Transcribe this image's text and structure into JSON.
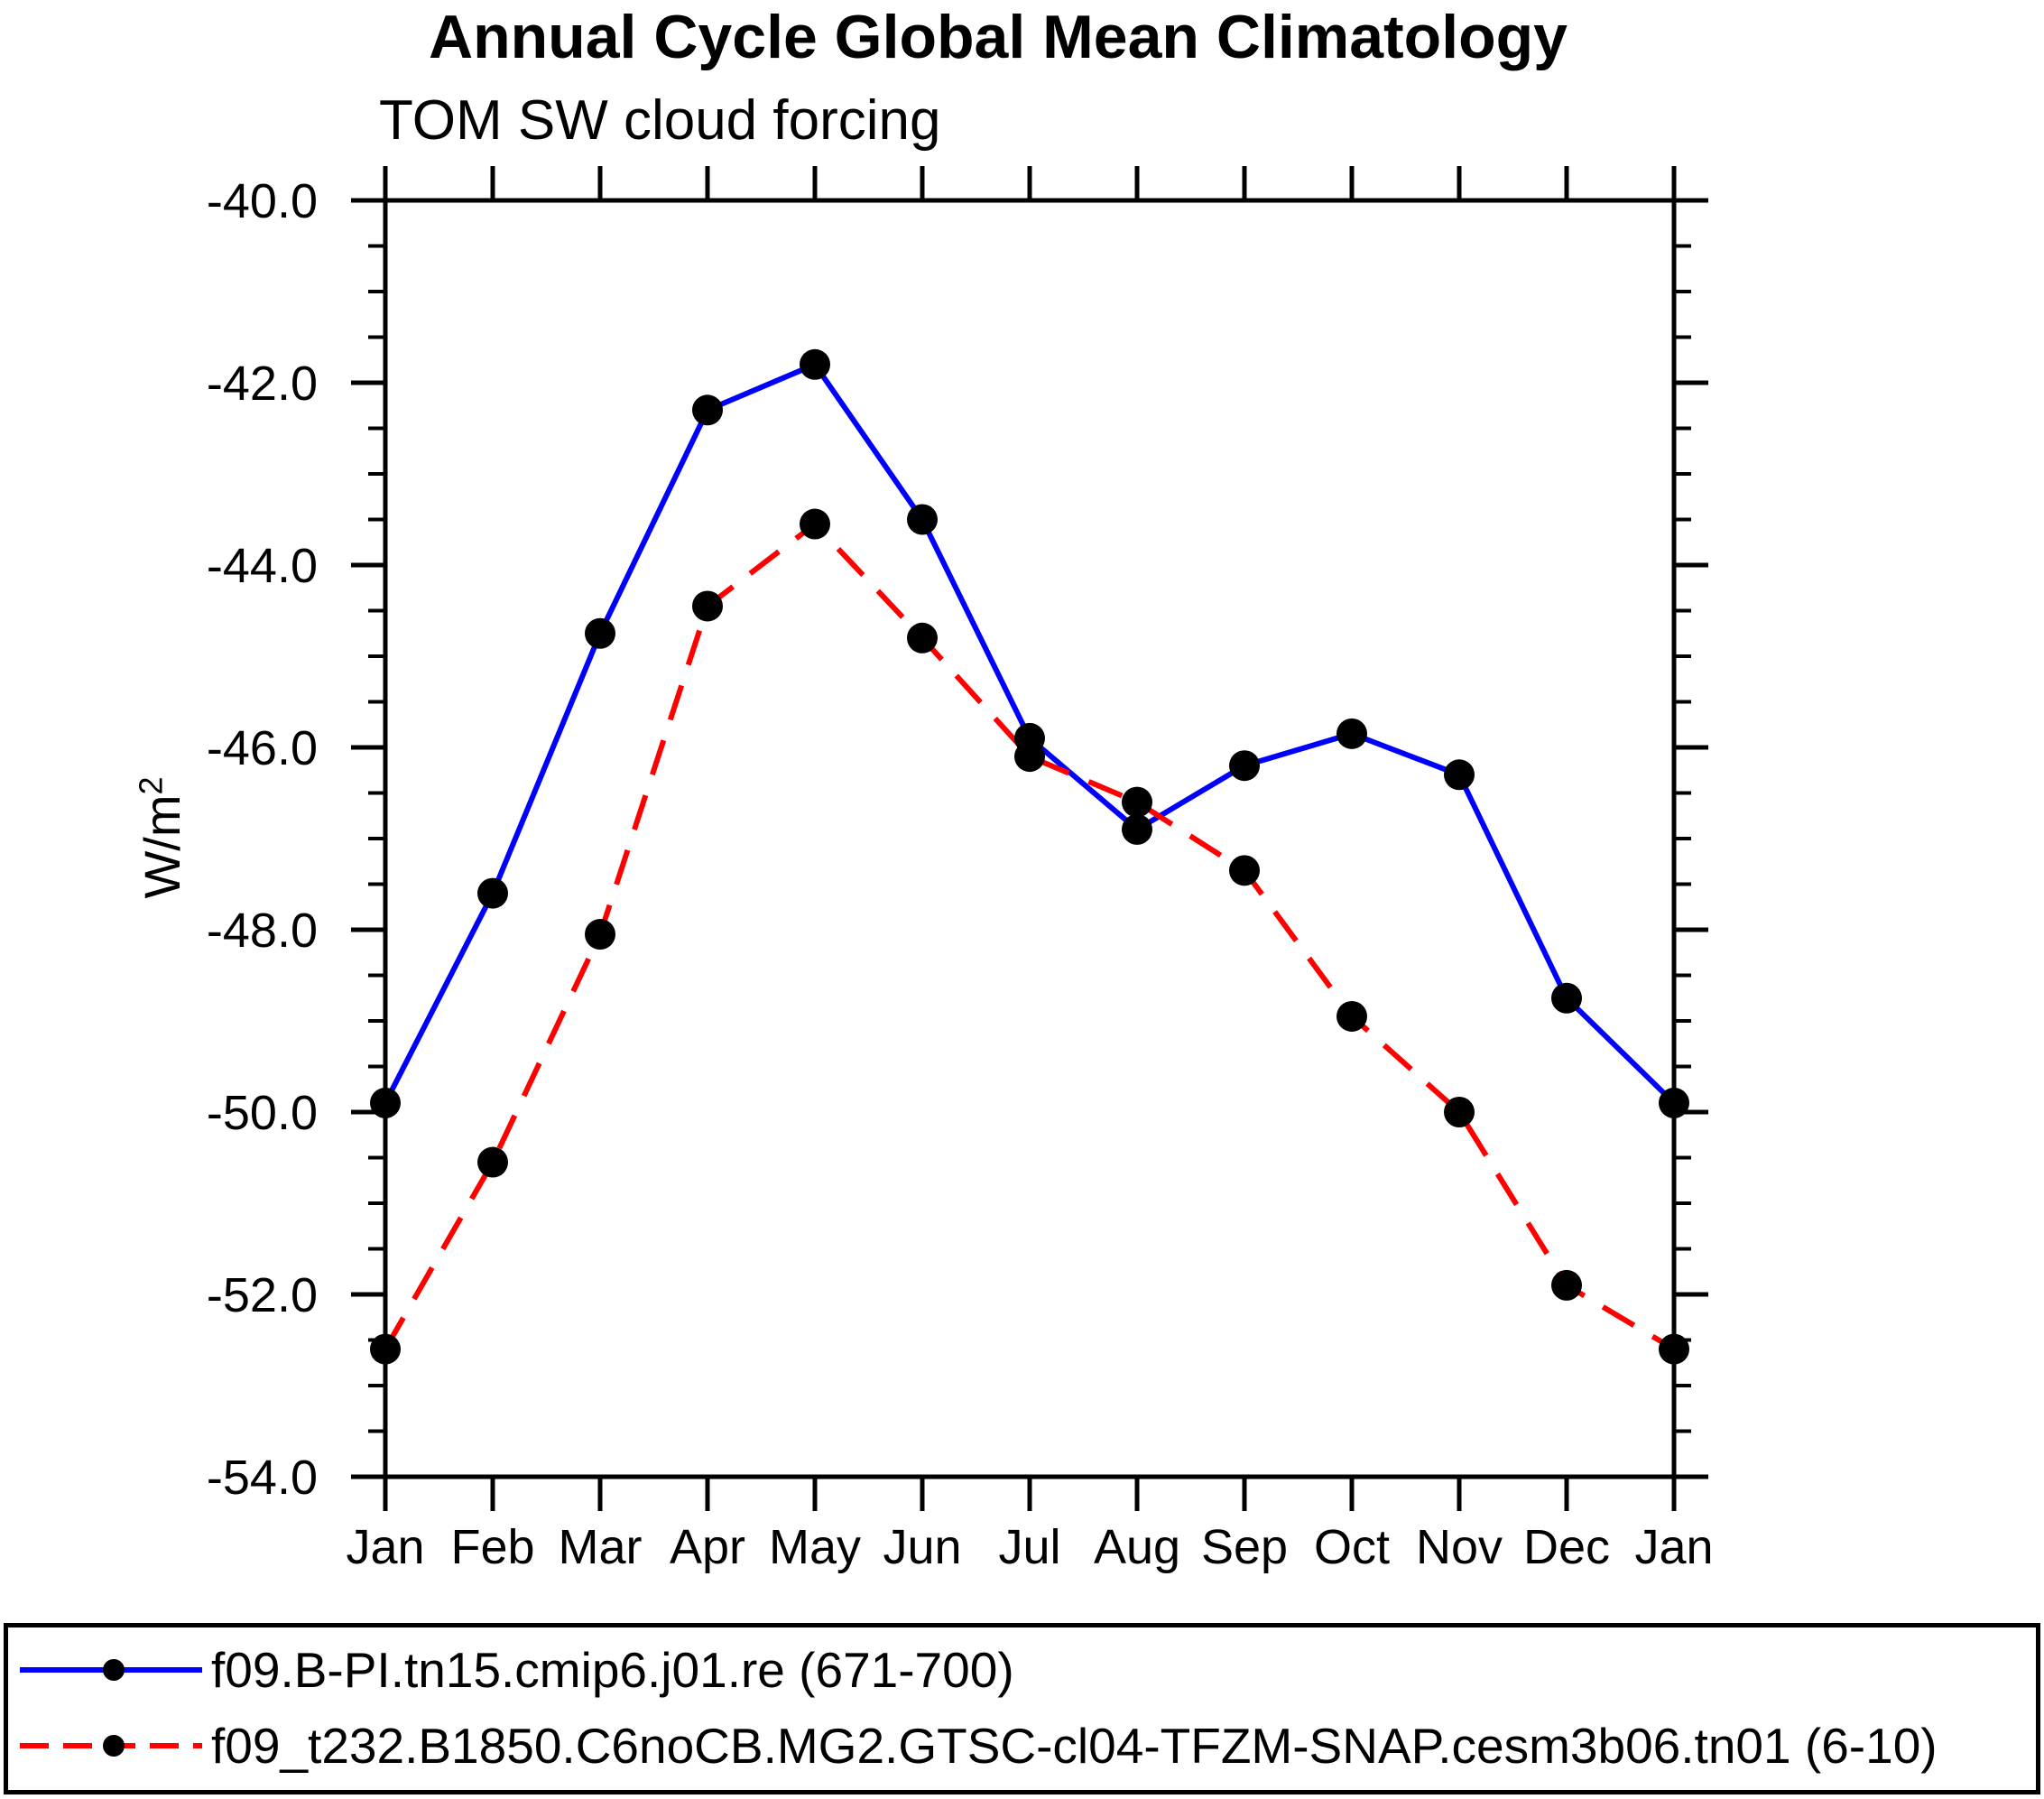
{
  "chart_data": {
    "type": "line",
    "title": "Annual Cycle Global Mean Climatology",
    "subtitle": "TOM SW cloud forcing",
    "ylabel_base": "W/m",
    "ylabel_exponent": "2",
    "categories": [
      "Jan",
      "Feb",
      "Mar",
      "Apr",
      "May",
      "Jun",
      "Jul",
      "Aug",
      "Sep",
      "Oct",
      "Nov",
      "Dec",
      "Jan"
    ],
    "series": [
      {
        "name": "f09.B-PI.tn15.cmip6.j01.re (671-700)",
        "color": "#0000ff",
        "line_style": "solid",
        "marker": "filled-circle",
        "marker_color": "#000000",
        "values": [
          -49.9,
          -47.6,
          -44.75,
          -42.3,
          -41.8,
          -43.5,
          -45.9,
          -46.9,
          -46.2,
          -45.85,
          -46.3,
          -48.75,
          -49.9
        ]
      },
      {
        "name": "f09_t232.B1850.C6noCB.MG2.GTSC-cl04-TFZM-SNAP.cesm3b06.tn01 (6-10)",
        "color": "#ff0000",
        "line_style": "dashed",
        "marker": "filled-circle",
        "marker_color": "#000000",
        "values": [
          -52.6,
          -50.55,
          -48.05,
          -44.45,
          -43.55,
          -44.8,
          -46.1,
          -46.6,
          -47.35,
          -48.95,
          -50.0,
          -51.9,
          -52.6
        ]
      }
    ],
    "ylim": [
      -54.0,
      -40.0
    ],
    "yticks": [
      -40,
      -42,
      -44,
      -46,
      -48,
      -50,
      -52,
      -54
    ],
    "ytick_labels": [
      "-40.0",
      "-42.0",
      "-44.0",
      "-46.0",
      "-48.0",
      "-50.0",
      "-52.0",
      "-54.0"
    ],
    "ytick_minor_step": 0.5,
    "grid": false,
    "frame_color": "#000000",
    "legend_position": "bottom-box"
  }
}
